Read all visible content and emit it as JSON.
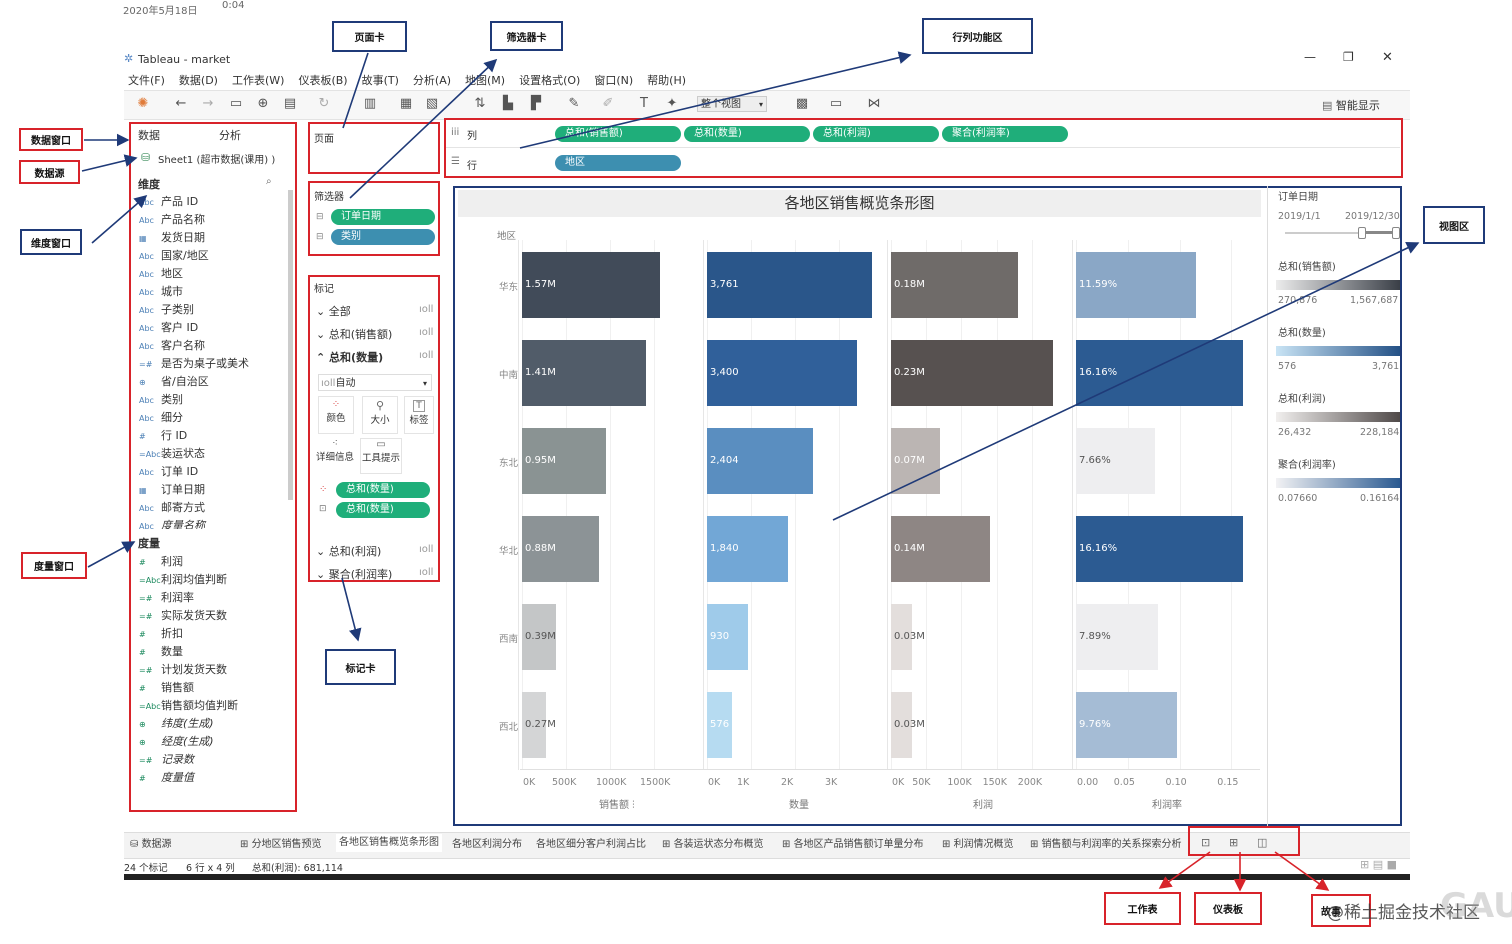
{
  "screen": {
    "date": "2020年5月18日",
    "time": "0:04"
  },
  "window": {
    "title": "Tableau - market",
    "controls": [
      "—",
      "❐",
      "✕"
    ]
  },
  "menu": [
    "文件(F)",
    "数据(D)",
    "工作表(W)",
    "仪表板(B)",
    "故事(T)",
    "分析(A)",
    "地图(M)",
    "设置格式(O)",
    "窗口(N)",
    "帮助(H)"
  ],
  "toolbar": {
    "fit_label": "整个视图",
    "smart_show": "智能显示"
  },
  "annotations": {
    "pages_card": "页面卡",
    "filters_card": "筛选器卡",
    "shelf_area": "行列功能区",
    "data_window": "数据窗口",
    "data_source": "数据源",
    "dimension_window": "维度窗口",
    "measure_window": "度量窗口",
    "marks_card": "标记卡",
    "view_area": "视图区",
    "worksheet": "工作表",
    "dashboard": "仪表板",
    "story": "故事"
  },
  "data_pane": {
    "tab_data": "数据",
    "tab_analysis": "分析",
    "source": "Sheet1 (超市数据(课用) )",
    "dimensions_title": "维度",
    "dimensions": [
      {
        "icon": "Abc",
        "label": "产品 ID"
      },
      {
        "icon": "Abc",
        "label": "产品名称"
      },
      {
        "icon": "cal",
        "label": "发货日期"
      },
      {
        "icon": "Abc",
        "label": "国家/地区"
      },
      {
        "icon": "Abc",
        "label": "地区"
      },
      {
        "icon": "Abc",
        "label": "城市"
      },
      {
        "icon": "Abc",
        "label": "子类别"
      },
      {
        "icon": "Abc",
        "label": "客户 ID"
      },
      {
        "icon": "Abc",
        "label": "客户名称"
      },
      {
        "icon": "=#",
        "label": "是否为桌子或美术"
      },
      {
        "icon": "geo",
        "label": "省/自治区"
      },
      {
        "icon": "Abc",
        "label": "类别"
      },
      {
        "icon": "Abc",
        "label": "细分"
      },
      {
        "icon": "#",
        "label": "行 ID"
      },
      {
        "icon": "=Abc",
        "label": "装运状态"
      },
      {
        "icon": "Abc",
        "label": "订单 ID"
      },
      {
        "icon": "cal",
        "label": "订单日期"
      },
      {
        "icon": "Abc",
        "label": "邮寄方式"
      },
      {
        "icon": "Abc",
        "label": "度量名称"
      }
    ],
    "measures_title": "度量",
    "measures": [
      {
        "icon": "#",
        "label": "利润",
        "italic": false
      },
      {
        "icon": "=Abc",
        "label": "利润均值判断",
        "italic": false
      },
      {
        "icon": "=#",
        "label": "利润率",
        "italic": false
      },
      {
        "icon": "=#",
        "label": "实际发货天数",
        "italic": false
      },
      {
        "icon": "#",
        "label": "折扣",
        "italic": false
      },
      {
        "icon": "#",
        "label": "数量",
        "italic": false
      },
      {
        "icon": "=#",
        "label": "计划发货天数",
        "italic": false
      },
      {
        "icon": "#",
        "label": "销售额",
        "italic": false
      },
      {
        "icon": "=Abc",
        "label": "销售额均值判断",
        "italic": false
      },
      {
        "icon": "geo",
        "label": "纬度(生成)",
        "italic": true
      },
      {
        "icon": "geo",
        "label": "经度(生成)",
        "italic": true
      },
      {
        "icon": "=#",
        "label": "记录数",
        "italic": true
      },
      {
        "icon": "#",
        "label": "度量值",
        "italic": true
      }
    ]
  },
  "pages_title": "页面",
  "filters": {
    "title": "筛选器",
    "items": [
      "订单日期",
      "类别"
    ]
  },
  "marks": {
    "title": "标记",
    "all": "全部",
    "sum_sales": "总和(销售额)",
    "sum_qty": "总和(数量)",
    "auto": "自动",
    "color": "颜色",
    "size": "大小",
    "label": "标签",
    "detail": "详细信息",
    "tooltip": "工具提示",
    "pill1": "总和(数量)",
    "pill2": "总和(数量)",
    "sum_profit": "总和(利润)",
    "agg_margin": "聚合(利润率)"
  },
  "shelves": {
    "columns_label": "列",
    "rows_label": "行",
    "columns": [
      "总和(销售额)",
      "总和(数量)",
      "总和(利润)",
      "聚合(利润率)"
    ],
    "rows": [
      "地区"
    ]
  },
  "legends": {
    "order_date_title": "订单日期",
    "date_from": "2019/1/1",
    "date_to": "2019/12/30",
    "sales_title": "总和(销售额)",
    "sales_min": "270,876",
    "sales_max": "1,567,687",
    "qty_title": "总和(数量)",
    "qty_min": "576",
    "qty_max": "3,761",
    "profit_title": "总和(利润)",
    "profit_min": "26,432",
    "profit_max": "228,184",
    "margin_title": "聚合(利润率)",
    "margin_min": "0.07660",
    "margin_max": "0.16164"
  },
  "chart_data": {
    "type": "bar",
    "title": "各地区销售概览条形图",
    "row_header": "地区",
    "categories": [
      "华东",
      "中南",
      "东北",
      "华北",
      "西南",
      "西北"
    ],
    "series": [
      {
        "name": "销售额",
        "values": [
          1570000,
          1410000,
          950000,
          880000,
          390000,
          270000
        ],
        "labels": [
          "1.57M",
          "1.41M",
          "0.95M",
          "0.88M",
          "0.39M",
          "0.27M"
        ],
        "xlim": [
          0,
          2000000
        ],
        "ticks": [
          "0K",
          "500K",
          "1000K",
          "1500K"
        ]
      },
      {
        "name": "数量",
        "values": [
          3761,
          3400,
          2404,
          1840,
          930,
          576
        ],
        "labels": [
          "3,761",
          "3,400",
          "2,404",
          "1,840",
          "930",
          "576"
        ],
        "xlim": [
          0,
          4000
        ],
        "ticks": [
          "0K",
          "1K",
          "2K",
          "3K"
        ]
      },
      {
        "name": "利润",
        "values": [
          180000,
          230000,
          70000,
          140000,
          30000,
          30000
        ],
        "labels": [
          "0.18M",
          "0.23M",
          "0.07M",
          "0.14M",
          "0.03M",
          "0.03M"
        ],
        "xlim": [
          0,
          250000
        ],
        "ticks": [
          "0K",
          "50K",
          "100K",
          "150K",
          "200K"
        ]
      },
      {
        "name": "利润率",
        "values": [
          0.1159,
          0.1616,
          0.0766,
          0.1616,
          0.0789,
          0.0976
        ],
        "labels": [
          "11.59%",
          "16.16%",
          "7.66%",
          "16.16%",
          "7.89%",
          "9.76%"
        ],
        "xlim": [
          0,
          0.17
        ],
        "ticks": [
          "0.00",
          "0.05",
          "0.10",
          "0.15"
        ]
      }
    ],
    "colors": [
      [
        "#414b59",
        "#515c69",
        "#8a9393",
        "#8c9396",
        "#c4c6c7",
        "#d4d5d6"
      ],
      [
        "#2a568a",
        "#30609a",
        "#5a8ec0",
        "#72a7d6",
        "#9fcbea",
        "#b6dbf1"
      ],
      [
        "#6f6b69",
        "#575150",
        "#bbb5b3",
        "#8e8684",
        "#e3dedc",
        "#e3dedc"
      ],
      [
        "#8aa7c6",
        "#2c5b92",
        "#eeeef0",
        "#2c5b92",
        "#eeeef0",
        "#a5bcd5"
      ]
    ]
  },
  "sheet_tabs": [
    "数据源",
    "分地区销售预览",
    "各地区销售概览条形图",
    "各地区利润分布",
    "各地区细分客户利润占比",
    "各装运状态分布概览",
    "各地区产品销售额订单量分布",
    "利润情况概览",
    "销售额与利润率的关系探索分析"
  ],
  "status": {
    "marks": "24 个标记",
    "dims": "6 行 x 4 列",
    "sum": "总和(利润): 681,114"
  },
  "watermark": "@稀土掘金技术社区",
  "brand": "GAUYA"
}
